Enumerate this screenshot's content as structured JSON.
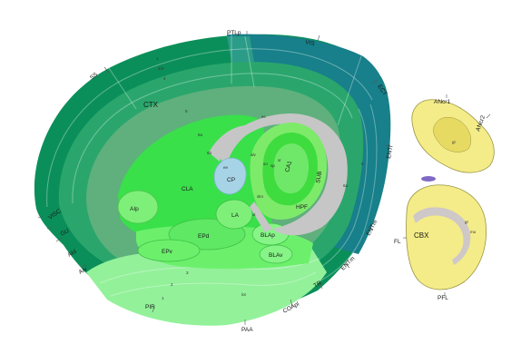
{
  "colors": {
    "cortex_dark": "#0b8f5a",
    "cortex_mid": "#2aa66c",
    "cortex_teal": "#17808a",
    "cortex_light": "#5fb07d",
    "striatum_green": "#39e04a",
    "amygdala_green": "#6cf06c",
    "hippocampus_green": "#7eea6a",
    "ventral_pale": "#93f19a",
    "fiber_gray": "#c6c6c6",
    "cp_blue": "#a7d3e6",
    "cerebellum_yellow": "#f4ec88",
    "cerebellum_outline": "#9a9444",
    "flocculus_purple": "#7f69c4"
  },
  "labels": {
    "ptlp": "PTLp",
    "vis": "VIS",
    "ss": "SS",
    "ect": "ECT",
    "ent": "ENTl",
    "entm": "ENTm",
    "ctx": "CTX",
    "cla": "CLA",
    "cp": "CP",
    "ca1": "CA1",
    "sub": "SUB",
    "hpf": "HPF",
    "la": "LA",
    "epd": "EPd",
    "epv": "EPv",
    "blap": "BLAp",
    "blav": "BLAv",
    "aip": "AIp",
    "visc": "VISC",
    "gu": "GU",
    "aid": "AId",
    "aiv": "AIv",
    "pir": "PIR",
    "paa": "PAA",
    "coap": "COApl",
    "tr": "TR",
    "anc1": "ANcr1",
    "anc2": "ANcr2",
    "cbx": "CBX",
    "fl": "FL",
    "pfl": "PFL",
    "layer_1": "1",
    "layer_23": "2/3",
    "layer_4": "4",
    "layer_5": "5",
    "layer_6a": "6a",
    "layer_6b": "6b",
    "ec": "ec",
    "ee": "ee",
    "alv": "alv",
    "so": "so",
    "sp": "sp",
    "sr": "sr",
    "slm": "slm",
    "st": "st",
    "lot": "lot",
    "gr": "gr",
    "mo": "mo",
    "pir_1": "1",
    "pir_2": "2",
    "pir_3": "3"
  }
}
